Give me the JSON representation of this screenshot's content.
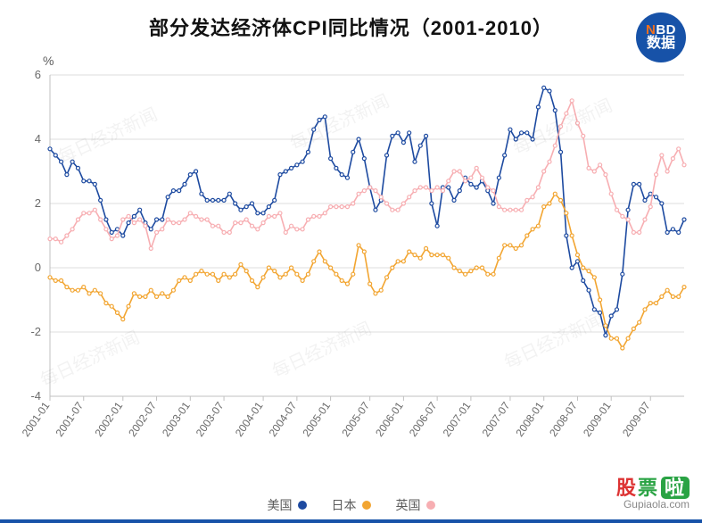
{
  "title": "部分发达经济体CPI同比情况（2001-2010）",
  "badge": {
    "top_letter": "N",
    "top_rest": "BD",
    "bottom": "数据"
  },
  "y_unit": "%",
  "chart": {
    "type": "line",
    "background_color": "#ffffff",
    "plot_background": "#ffffff",
    "grid_color": "#dedede",
    "axis_color": "#c0c0c0",
    "ylim": [
      -4,
      6
    ],
    "ytick_step": 2,
    "yticks": [
      -4,
      -2,
      0,
      2,
      4,
      6
    ],
    "x_labels": [
      "2001-01",
      "2001-07",
      "2002-01",
      "2002-07",
      "2003-01",
      "2003-07",
      "2004-01",
      "2004-07",
      "2005-01",
      "2005-07",
      "2006-01",
      "2006-07",
      "2007-01",
      "2007-07",
      "2008-01",
      "2008-07",
      "2009-01",
      "2009-07"
    ],
    "n_points": 114,
    "marker_radius": 2.0,
    "line_width": 1.6,
    "series": [
      {
        "name": "美国",
        "color": "#1d4aa0",
        "values": [
          3.7,
          3.5,
          3.3,
          2.9,
          3.3,
          3.1,
          2.7,
          2.7,
          2.6,
          2.1,
          1.5,
          1.1,
          1.2,
          1.0,
          1.4,
          1.6,
          1.8,
          1.4,
          1.2,
          1.5,
          1.5,
          2.2,
          2.4,
          2.4,
          2.6,
          2.9,
          3.0,
          2.3,
          2.1,
          2.1,
          2.1,
          2.1,
          2.3,
          2.0,
          1.8,
          1.9,
          2.0,
          1.7,
          1.7,
          1.9,
          2.1,
          2.9,
          3.0,
          3.1,
          3.2,
          3.3,
          3.6,
          4.3,
          4.6,
          4.7,
          3.4,
          3.1,
          2.9,
          2.8,
          3.6,
          4.0,
          3.4,
          2.5,
          1.8,
          2.1,
          3.5,
          4.1,
          4.2,
          3.9,
          4.2,
          3.3,
          3.8,
          4.1,
          2.0,
          1.3,
          2.5,
          2.5,
          2.1,
          2.4,
          2.8,
          2.6,
          2.5,
          2.7,
          2.4,
          2.0,
          2.8,
          3.5,
          4.3,
          4.0,
          4.2,
          4.2,
          4.0,
          5.0,
          5.6,
          5.5,
          4.9,
          3.6,
          1.0,
          0.0,
          0.2,
          -0.4,
          -0.7,
          -1.3,
          -1.4,
          -2.1,
          -1.5,
          -1.3,
          -0.2,
          1.8,
          2.6,
          2.6,
          2.1,
          2.3,
          2.2,
          2.0,
          1.1,
          1.2,
          1.1,
          1.5
        ]
      },
      {
        "name": "日本",
        "color": "#f2a531",
        "values": [
          -0.3,
          -0.4,
          -0.4,
          -0.6,
          -0.7,
          -0.7,
          -0.6,
          -0.8,
          -0.7,
          -0.8,
          -1.1,
          -1.2,
          -1.4,
          -1.6,
          -1.2,
          -0.8,
          -0.9,
          -0.9,
          -0.7,
          -0.9,
          -0.8,
          -0.9,
          -0.7,
          -0.4,
          -0.3,
          -0.4,
          -0.2,
          -0.1,
          -0.2,
          -0.2,
          -0.4,
          -0.2,
          -0.3,
          -0.2,
          0.1,
          -0.1,
          -0.4,
          -0.6,
          -0.3,
          0.0,
          -0.1,
          -0.3,
          -0.2,
          0.0,
          -0.2,
          -0.4,
          -0.2,
          0.2,
          0.5,
          0.2,
          0.0,
          -0.2,
          -0.4,
          -0.5,
          -0.2,
          0.7,
          0.5,
          -0.5,
          -0.8,
          -0.7,
          -0.3,
          0.0,
          0.2,
          0.2,
          0.5,
          0.4,
          0.3,
          0.6,
          0.4,
          0.4,
          0.4,
          0.3,
          0.0,
          -0.1,
          -0.2,
          -0.1,
          0.0,
          0.0,
          -0.2,
          -0.2,
          0.3,
          0.7,
          0.7,
          0.6,
          0.7,
          1.0,
          1.2,
          1.3,
          1.9,
          2.0,
          2.3,
          2.1,
          1.7,
          1.0,
          0.4,
          0.0,
          -0.1,
          -0.3,
          -1.0,
          -1.8,
          -2.2,
          -2.2,
          -2.5,
          -2.2,
          -1.9,
          -1.7,
          -1.3,
          -1.1,
          -1.1,
          -0.9,
          -0.7,
          -0.9,
          -0.9,
          -0.6
        ]
      },
      {
        "name": "英国",
        "color": "#f7aeb2",
        "values": [
          0.9,
          0.9,
          0.8,
          1.0,
          1.2,
          1.5,
          1.7,
          1.7,
          1.8,
          1.5,
          1.2,
          0.9,
          1.0,
          1.5,
          1.6,
          1.4,
          1.5,
          1.3,
          0.6,
          1.1,
          1.2,
          1.5,
          1.4,
          1.4,
          1.5,
          1.7,
          1.6,
          1.5,
          1.5,
          1.3,
          1.3,
          1.1,
          1.1,
          1.4,
          1.4,
          1.5,
          1.3,
          1.2,
          1.4,
          1.6,
          1.6,
          1.7,
          1.1,
          1.3,
          1.2,
          1.2,
          1.5,
          1.6,
          1.6,
          1.7,
          1.9,
          1.9,
          1.9,
          1.9,
          2.0,
          2.3,
          2.4,
          2.5,
          2.4,
          2.2,
          2.0,
          1.8,
          1.8,
          2.0,
          2.2,
          2.4,
          2.5,
          2.5,
          2.4,
          2.5,
          2.4,
          2.7,
          3.0,
          3.0,
          2.7,
          2.8,
          3.1,
          2.8,
          2.5,
          2.4,
          1.9,
          1.8,
          1.8,
          1.8,
          1.8,
          2.1,
          2.2,
          2.5,
          3.0,
          3.3,
          3.8,
          4.4,
          4.8,
          5.2,
          4.5,
          4.1,
          3.1,
          3.0,
          3.2,
          2.9,
          2.3,
          1.8,
          1.6,
          1.5,
          1.1,
          1.1,
          1.5,
          1.9,
          2.9,
          3.5,
          3.0,
          3.4,
          3.7,
          3.2
        ]
      }
    ]
  },
  "legend": [
    {
      "label": "美国",
      "color": "#1d4aa0"
    },
    {
      "label": "日本",
      "color": "#f2a531"
    },
    {
      "label": "英国",
      "color": "#f7aeb2"
    }
  ],
  "watermark_text": "每日经济新闻",
  "footer": {
    "brand_g": "股",
    "brand_p": "票",
    "brand_l": "啦",
    "url": "Gupiaola.com"
  }
}
